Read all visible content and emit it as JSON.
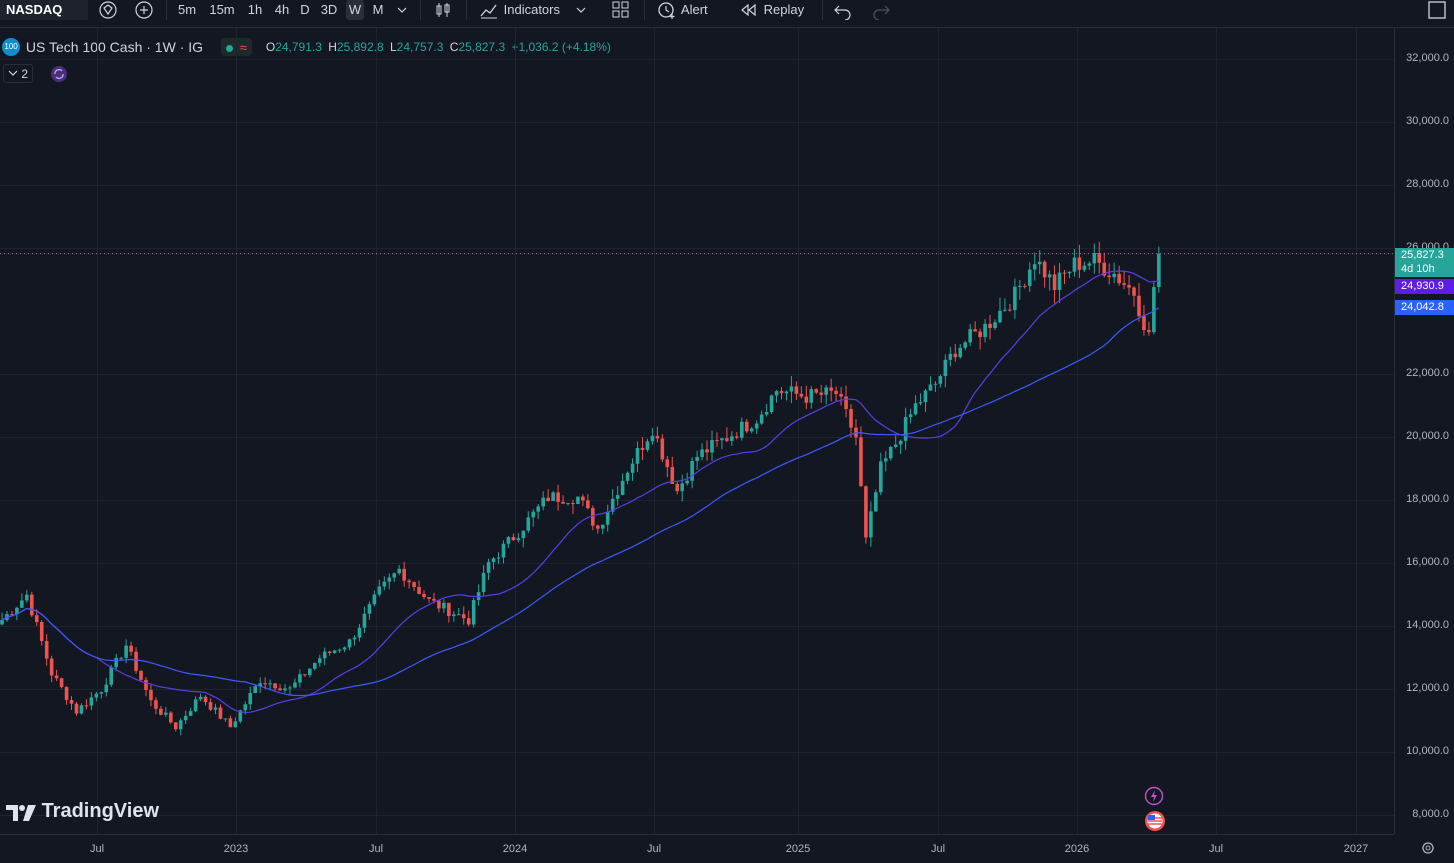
{
  "toolbar": {
    "symbol": "NASDAQ",
    "intervals": [
      "5m",
      "15m",
      "1h",
      "4h",
      "D",
      "3D",
      "W",
      "M"
    ],
    "active_interval": "W",
    "indicators_label": "Indicators",
    "alert_label": "Alert",
    "replay_label": "Replay"
  },
  "legend": {
    "title": "US Tech 100 Cash · 1W · IG",
    "symbol_badge": "100",
    "o_label": "O",
    "o_value": "24,791.3",
    "h_label": "H",
    "h_value": "25,892.8",
    "l_label": "L",
    "l_value": "24,757.3",
    "c_label": "C",
    "c_value": "25,827.3",
    "change": "+1,036.2 (+4.18%)",
    "indicator_count": "2",
    "wave_glyph": "≈"
  },
  "price_badges": {
    "last": "25,827.3",
    "countdown": "4d 10h",
    "ma_fast": "24,930.9",
    "ma_slow": "24,042.8"
  },
  "colors": {
    "bg": "#131722",
    "up": "#26a69a",
    "down": "#ef5350",
    "ma_fast": "#5b3de8",
    "ma_slow": "#3d5afe",
    "badge_last": "#26a69a",
    "badge_fast": "#5b1ee6",
    "badge_slow": "#2962ff"
  },
  "brand": "TradingView",
  "chart_data": {
    "type": "candlestick",
    "y_ticks": [
      "32,000.0",
      "30,000.0",
      "28,000.0",
      "26,000.0",
      "22,000.0",
      "20,000.0",
      "18,000.0",
      "16,000.0",
      "14,000.0",
      "12,000.0",
      "10,000.0",
      "8,000.0"
    ],
    "y_tick_values": [
      32000,
      30000,
      28000,
      26000,
      22000,
      20000,
      18000,
      16000,
      14000,
      12000,
      10000,
      8000
    ],
    "x_ticks": [
      "Jul",
      "2023",
      "Jul",
      "2024",
      "Jul",
      "2025",
      "Jul",
      "2026",
      "Jul",
      "2027"
    ],
    "y_range": [
      7400,
      33000
    ],
    "anchors": [
      {
        "t": 0,
        "v": 14200
      },
      {
        "t": 5,
        "v": 15000
      },
      {
        "t": 10,
        "v": 12500
      },
      {
        "t": 15,
        "v": 11300
      },
      {
        "t": 20,
        "v": 12000
      },
      {
        "t": 25,
        "v": 13400
      },
      {
        "t": 30,
        "v": 11600
      },
      {
        "t": 35,
        "v": 10800
      },
      {
        "t": 40,
        "v": 11800
      },
      {
        "t": 46,
        "v": 10800
      },
      {
        "t": 52,
        "v": 12300
      },
      {
        "t": 58,
        "v": 12000
      },
      {
        "t": 64,
        "v": 13000
      },
      {
        "t": 70,
        "v": 13500
      },
      {
        "t": 76,
        "v": 15100
      },
      {
        "t": 80,
        "v": 15800
      },
      {
        "t": 86,
        "v": 14800
      },
      {
        "t": 90,
        "v": 14500
      },
      {
        "t": 94,
        "v": 14200
      },
      {
        "t": 98,
        "v": 16000
      },
      {
        "t": 104,
        "v": 17000
      },
      {
        "t": 110,
        "v": 18100
      },
      {
        "t": 116,
        "v": 18100
      },
      {
        "t": 120,
        "v": 17100
      },
      {
        "t": 126,
        "v": 19000
      },
      {
        "t": 131,
        "v": 20300
      },
      {
        "t": 136,
        "v": 18300
      },
      {
        "t": 140,
        "v": 19400
      },
      {
        "t": 146,
        "v": 20000
      },
      {
        "t": 152,
        "v": 20600
      },
      {
        "t": 156,
        "v": 21500
      },
      {
        "t": 162,
        "v": 21300
      },
      {
        "t": 168,
        "v": 21400
      },
      {
        "t": 172,
        "v": 20000
      },
      {
        "t": 174,
        "v": 16700
      },
      {
        "t": 177,
        "v": 19000
      },
      {
        "t": 180,
        "v": 19800
      },
      {
        "t": 184,
        "v": 21000
      },
      {
        "t": 188,
        "v": 21700
      },
      {
        "t": 192,
        "v": 22800
      },
      {
        "t": 198,
        "v": 23500
      },
      {
        "t": 204,
        "v": 24500
      },
      {
        "t": 208,
        "v": 25700
      },
      {
        "t": 212,
        "v": 24800
      },
      {
        "t": 216,
        "v": 25500
      },
      {
        "t": 220,
        "v": 25600
      },
      {
        "t": 224,
        "v": 25200
      },
      {
        "t": 228,
        "v": 24600
      },
      {
        "t": 231,
        "v": 23200
      },
      {
        "t": 232,
        "v": 24800
      },
      {
        "t": 233,
        "v": 25800
      }
    ]
  }
}
